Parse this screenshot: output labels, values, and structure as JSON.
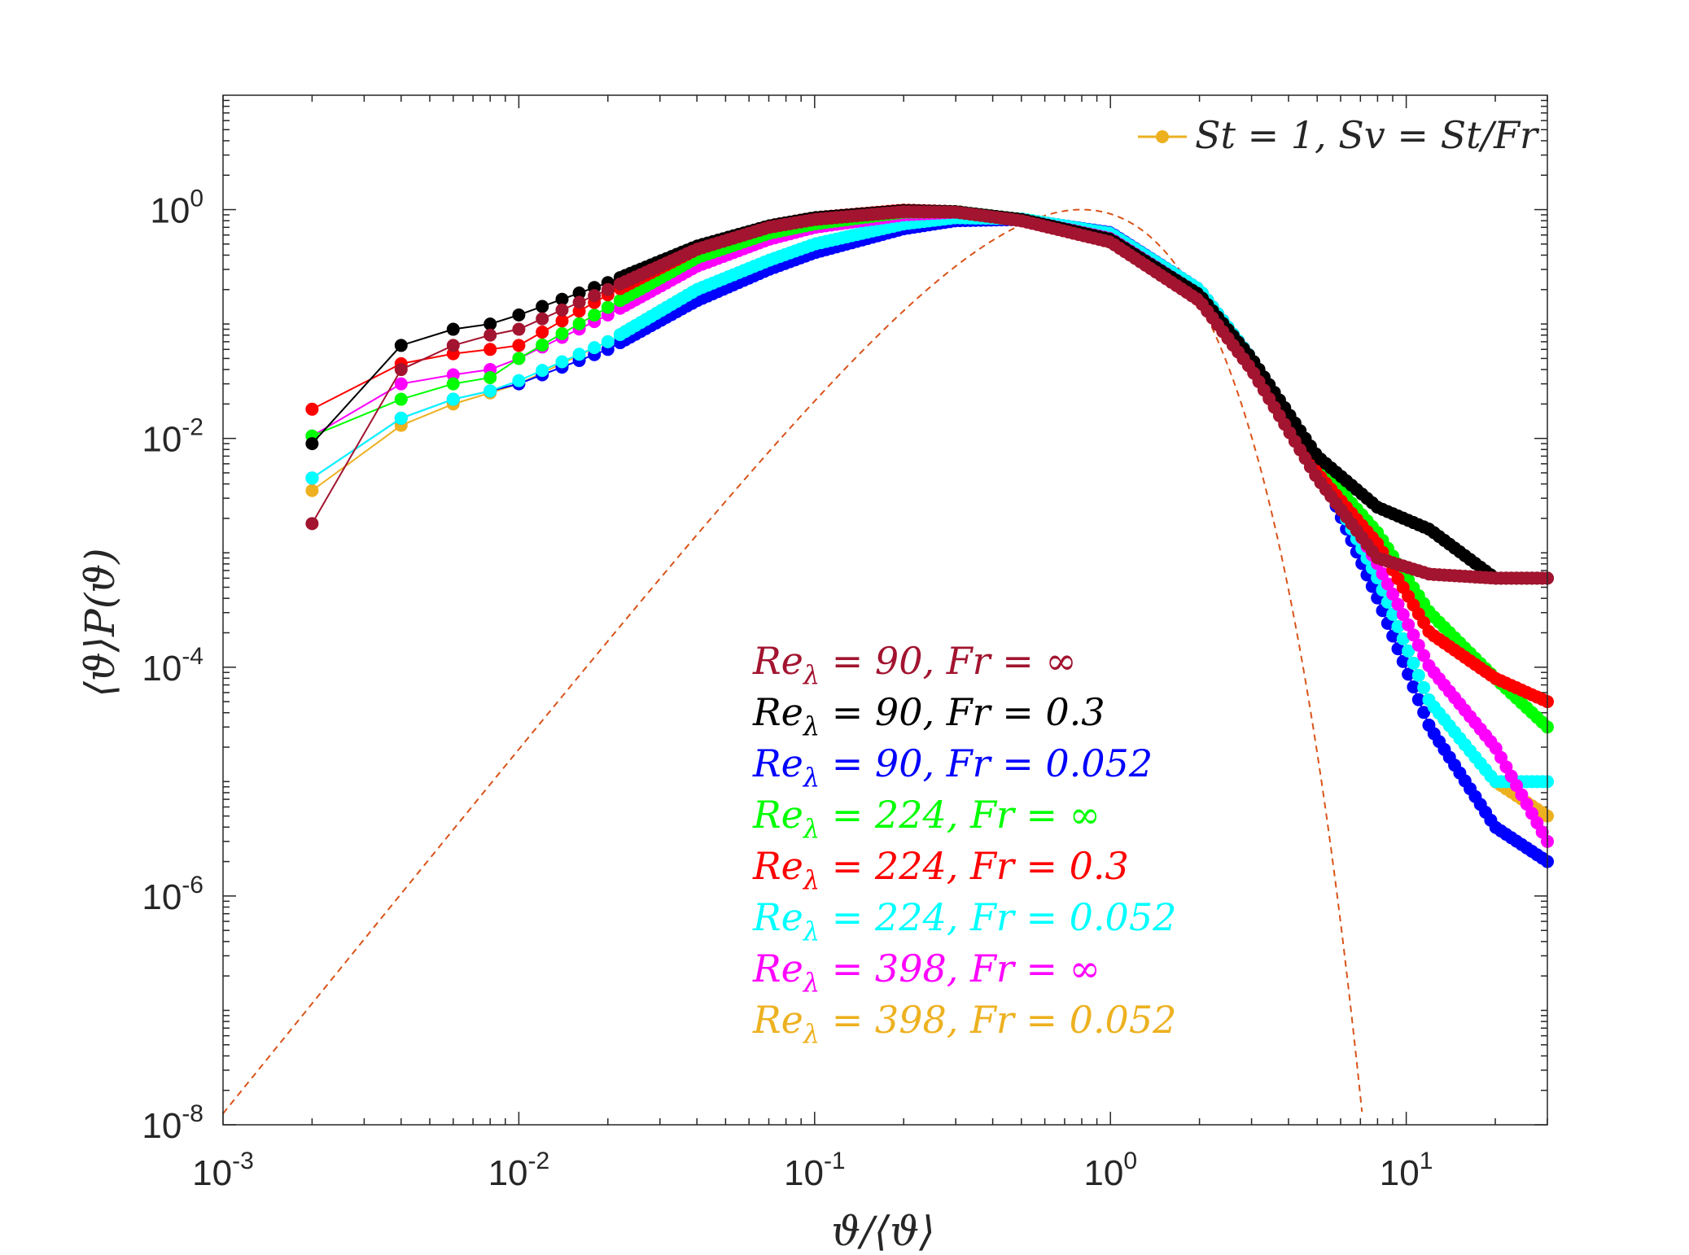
{
  "chart_data": {
    "type": "scatter",
    "xscale": "log",
    "yscale": "log",
    "xlim": [
      0.001,
      30
    ],
    "ylim": [
      1e-08,
      10
    ],
    "xlabel": "ϑ/⟨ϑ⟩",
    "ylabel": "⟨ϑ⟩P(ϑ)",
    "x_ticks": [
      {
        "base": "10",
        "exp": "-3",
        "value": 0.001
      },
      {
        "base": "10",
        "exp": "-2",
        "value": 0.01
      },
      {
        "base": "10",
        "exp": "-1",
        "value": 0.1
      },
      {
        "base": "10",
        "exp": "0",
        "value": 1
      },
      {
        "base": "10",
        "exp": "1",
        "value": 10
      }
    ],
    "y_ticks": [
      {
        "base": "10",
        "exp": "0",
        "value": 1
      },
      {
        "base": "10",
        "exp": "-2",
        "value": 0.01
      },
      {
        "base": "10",
        "exp": "-4",
        "value": 0.0001
      },
      {
        "base": "10",
        "exp": "-6",
        "value": 1e-06
      },
      {
        "base": "10",
        "exp": "-8",
        "value": 1e-08
      }
    ],
    "top_legend": {
      "label": "St = 1, Sv = St/Fr",
      "color": "#EDB120"
    },
    "reference_curve": {
      "style": "dashed",
      "color": "#D95319",
      "description": "exponential-type reference PDF",
      "peak_x": 0.8,
      "peak_y": 1.0
    },
    "series": [
      {
        "name": "Reλ = 90, Fr = ∞",
        "color": "#A2142F",
        "points": [
          [
            0.002,
            0.0018
          ],
          [
            0.004,
            0.04
          ],
          [
            0.006,
            0.065
          ],
          [
            0.008,
            0.08
          ],
          [
            0.01,
            0.09
          ],
          [
            0.02,
            0.2
          ],
          [
            0.04,
            0.45
          ],
          [
            0.07,
            0.7
          ],
          [
            0.1,
            0.82
          ],
          [
            0.2,
            0.96
          ],
          [
            0.3,
            0.95
          ],
          [
            0.5,
            0.8
          ],
          [
            1,
            0.52
          ],
          [
            2,
            0.16
          ],
          [
            3,
            0.04
          ],
          [
            5,
            0.0045
          ],
          [
            8,
            0.0009
          ],
          [
            12,
            0.00065
          ],
          [
            20,
            0.0006
          ],
          [
            30,
            0.0006
          ]
        ]
      },
      {
        "name": "Reλ = 90, Fr = 0.3",
        "color": "#000000",
        "points": [
          [
            0.002,
            0.009
          ],
          [
            0.004,
            0.065
          ],
          [
            0.006,
            0.09
          ],
          [
            0.008,
            0.1
          ],
          [
            0.01,
            0.12
          ],
          [
            0.02,
            0.23
          ],
          [
            0.04,
            0.48
          ],
          [
            0.07,
            0.72
          ],
          [
            0.1,
            0.85
          ],
          [
            0.2,
            0.98
          ],
          [
            0.3,
            0.96
          ],
          [
            0.5,
            0.82
          ],
          [
            1,
            0.55
          ],
          [
            2,
            0.18
          ],
          [
            3,
            0.05
          ],
          [
            5,
            0.007
          ],
          [
            8,
            0.0025
          ],
          [
            12,
            0.0016
          ],
          [
            20,
            0.0006
          ],
          [
            30,
            0.0006
          ]
        ]
      },
      {
        "name": "Reλ = 90, Fr = 0.052",
        "color": "#0000FF",
        "points": [
          [
            0.002,
            0.0045
          ],
          [
            0.004,
            0.015
          ],
          [
            0.006,
            0.022
          ],
          [
            0.008,
            0.026
          ],
          [
            0.01,
            0.03
          ],
          [
            0.02,
            0.06
          ],
          [
            0.04,
            0.16
          ],
          [
            0.07,
            0.3
          ],
          [
            0.1,
            0.42
          ],
          [
            0.2,
            0.68
          ],
          [
            0.3,
            0.8
          ],
          [
            0.5,
            0.82
          ],
          [
            1,
            0.63
          ],
          [
            2,
            0.2
          ],
          [
            3,
            0.05
          ],
          [
            5,
            0.006
          ],
          [
            8,
            0.0004
          ],
          [
            12,
            3e-05
          ],
          [
            20,
            4e-06
          ],
          [
            30,
            2e-06
          ]
        ]
      },
      {
        "name": "Reλ = 224, Fr = ∞",
        "color": "#00FF00",
        "points": [
          [
            0.002,
            0.0105
          ],
          [
            0.004,
            0.022
          ],
          [
            0.006,
            0.03
          ],
          [
            0.008,
            0.034
          ],
          [
            0.01,
            0.05
          ],
          [
            0.02,
            0.14
          ],
          [
            0.04,
            0.38
          ],
          [
            0.07,
            0.62
          ],
          [
            0.1,
            0.75
          ],
          [
            0.2,
            0.95
          ],
          [
            0.3,
            0.96
          ],
          [
            0.5,
            0.82
          ],
          [
            1,
            0.55
          ],
          [
            2,
            0.17
          ],
          [
            3,
            0.045
          ],
          [
            5,
            0.006
          ],
          [
            8,
            0.0015
          ],
          [
            12,
            0.0003
          ],
          [
            20,
            8e-05
          ],
          [
            30,
            3e-05
          ]
        ]
      },
      {
        "name": "Reλ = 224, Fr = 0.3",
        "color": "#FF0000",
        "points": [
          [
            0.002,
            0.018
          ],
          [
            0.004,
            0.045
          ],
          [
            0.006,
            0.055
          ],
          [
            0.008,
            0.06
          ],
          [
            0.01,
            0.065
          ],
          [
            0.02,
            0.18
          ],
          [
            0.04,
            0.45
          ],
          [
            0.07,
            0.72
          ],
          [
            0.1,
            0.85
          ],
          [
            0.2,
            0.99
          ],
          [
            0.3,
            0.96
          ],
          [
            0.5,
            0.8
          ],
          [
            1,
            0.53
          ],
          [
            2,
            0.16
          ],
          [
            3,
            0.04
          ],
          [
            5,
            0.005
          ],
          [
            8,
            0.0012
          ],
          [
            12,
            0.0002
          ],
          [
            20,
            8e-05
          ],
          [
            30,
            5e-05
          ]
        ]
      },
      {
        "name": "Reλ = 224, Fr = 0.052",
        "color": "#00FFFF",
        "points": [
          [
            0.002,
            0.0045
          ],
          [
            0.004,
            0.015
          ],
          [
            0.006,
            0.022
          ],
          [
            0.008,
            0.026
          ],
          [
            0.01,
            0.032
          ],
          [
            0.02,
            0.07
          ],
          [
            0.04,
            0.2
          ],
          [
            0.07,
            0.36
          ],
          [
            0.1,
            0.5
          ],
          [
            0.2,
            0.75
          ],
          [
            0.3,
            0.85
          ],
          [
            0.5,
            0.83
          ],
          [
            1,
            0.62
          ],
          [
            2,
            0.2
          ],
          [
            3,
            0.05
          ],
          [
            5,
            0.006
          ],
          [
            8,
            0.0006
          ],
          [
            12,
            5e-05
          ],
          [
            20,
            1e-05
          ],
          [
            30,
            1e-05
          ]
        ]
      },
      {
        "name": "Reλ = 398, Fr = ∞",
        "color": "#FF00FF",
        "points": [
          [
            0.002,
            0.0105
          ],
          [
            0.004,
            0.03
          ],
          [
            0.006,
            0.036
          ],
          [
            0.008,
            0.04
          ],
          [
            0.01,
            0.05
          ],
          [
            0.02,
            0.12
          ],
          [
            0.04,
            0.32
          ],
          [
            0.07,
            0.55
          ],
          [
            0.1,
            0.7
          ],
          [
            0.2,
            0.9
          ],
          [
            0.3,
            0.95
          ],
          [
            0.5,
            0.82
          ],
          [
            1,
            0.56
          ],
          [
            2,
            0.18
          ],
          [
            3,
            0.045
          ],
          [
            5,
            0.006
          ],
          [
            8,
            0.0008
          ],
          [
            12,
            0.0001
          ],
          [
            20,
            2e-05
          ],
          [
            30,
            3e-06
          ]
        ]
      },
      {
        "name": "Reλ = 398, Fr = 0.052",
        "color": "#EDB120",
        "points": [
          [
            0.002,
            0.0035
          ],
          [
            0.004,
            0.013
          ],
          [
            0.006,
            0.02
          ],
          [
            0.008,
            0.025
          ],
          [
            0.01,
            0.03
          ],
          [
            0.02,
            0.07
          ],
          [
            0.04,
            0.2
          ],
          [
            0.07,
            0.35
          ],
          [
            0.1,
            0.48
          ],
          [
            0.2,
            0.73
          ],
          [
            0.3,
            0.84
          ],
          [
            0.5,
            0.83
          ],
          [
            1,
            0.62
          ],
          [
            2,
            0.2
          ],
          [
            3,
            0.05
          ],
          [
            5,
            0.006
          ],
          [
            8,
            0.0006
          ],
          [
            12,
            5e-05
          ],
          [
            20,
            1e-05
          ],
          [
            30,
            5e-06
          ]
        ]
      }
    ],
    "legend_entries": [
      {
        "re": "Re",
        "sub": "λ",
        "rest": " = 90, Fr = ∞",
        "color": "#A2142F"
      },
      {
        "re": "Re",
        "sub": "λ",
        "rest": " = 90, Fr = 0.3",
        "color": "#000000"
      },
      {
        "re": "Re",
        "sub": "λ",
        "rest": " = 90, Fr = 0.052",
        "color": "#0000FF"
      },
      {
        "re": "Re",
        "sub": "λ",
        "rest": " = 224, Fr = ∞",
        "color": "#00FF00"
      },
      {
        "re": "Re",
        "sub": "λ",
        "rest": " = 224, Fr = 0.3",
        "color": "#FF0000"
      },
      {
        "re": "Re",
        "sub": "λ",
        "rest": " = 224, Fr = 0.052",
        "color": "#00FFFF"
      },
      {
        "re": "Re",
        "sub": "λ",
        "rest": " = 398, Fr = ∞",
        "color": "#FF00FF"
      },
      {
        "re": "Re",
        "sub": "λ",
        "rest": " = 398, Fr = 0.052",
        "color": "#EDB120"
      }
    ]
  }
}
